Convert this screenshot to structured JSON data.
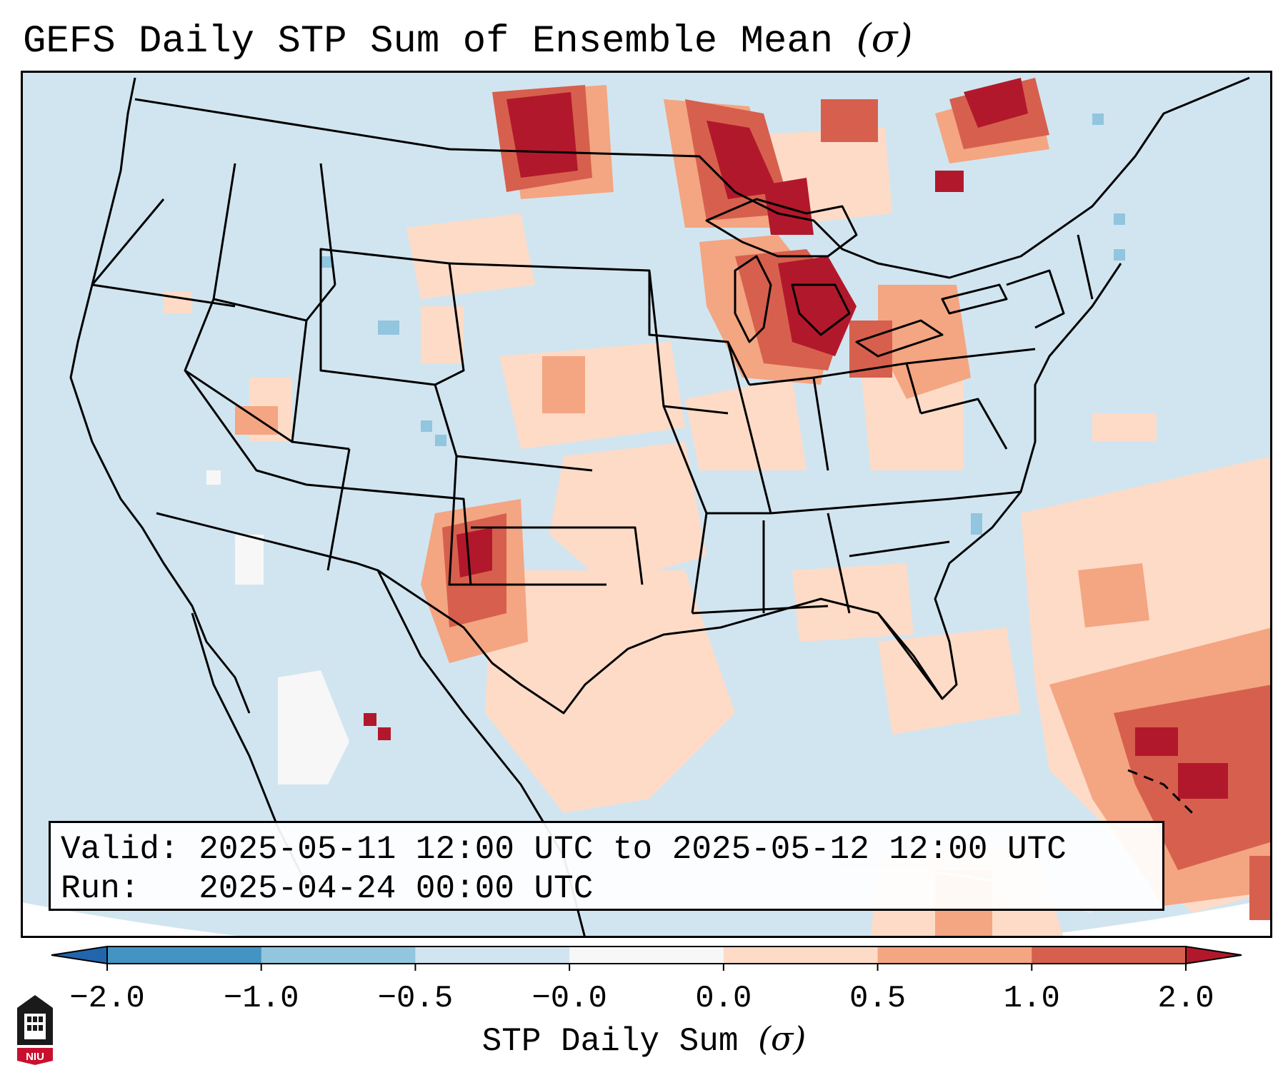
{
  "figure": {
    "title": "GEFS Daily STP Sum of Ensemble Mean",
    "title_unit": "(σ)",
    "valid_label": "Valid:",
    "valid_value": "2025-05-11 12:00 UTC to 2025-05-12 12:00 UTC",
    "run_label": "Run:",
    "run_value": "2025-04-24 00:00 UTC"
  },
  "colorbar": {
    "label": "STP Daily Sum",
    "label_unit": "(σ)",
    "ticks": [
      "−2.0",
      "−1.0",
      "−0.5",
      "−0.0",
      "0.0",
      "0.5",
      "1.0",
      "2.0"
    ],
    "colors": [
      "#4393c3",
      "#92c5de",
      "#d1e5f0",
      "#f7f7f7",
      "#fddbc7",
      "#f4a582",
      "#d6604d"
    ],
    "extend_low_color": "#2166ac",
    "extend_high_color": "#b2182b"
  },
  "map": {
    "projection": "lambert-conformal",
    "region": "CONUS",
    "background_color": "#d1e5f0",
    "highlights": [
      {
        "area": "Upper Midwest / Wisconsin",
        "level": "2.0+"
      },
      {
        "area": "Northern Plains / Canadian Prairies",
        "level": "2.0+"
      },
      {
        "area": "Southern Ontario / Quebec",
        "level": "2.0+"
      },
      {
        "area": "Eastern New Mexico / Colorado border",
        "level": "1.0-2.0"
      },
      {
        "area": "Western Atlantic near Bahamas",
        "level": "1.0-2.0"
      }
    ]
  },
  "logo": {
    "text": "NIU"
  }
}
